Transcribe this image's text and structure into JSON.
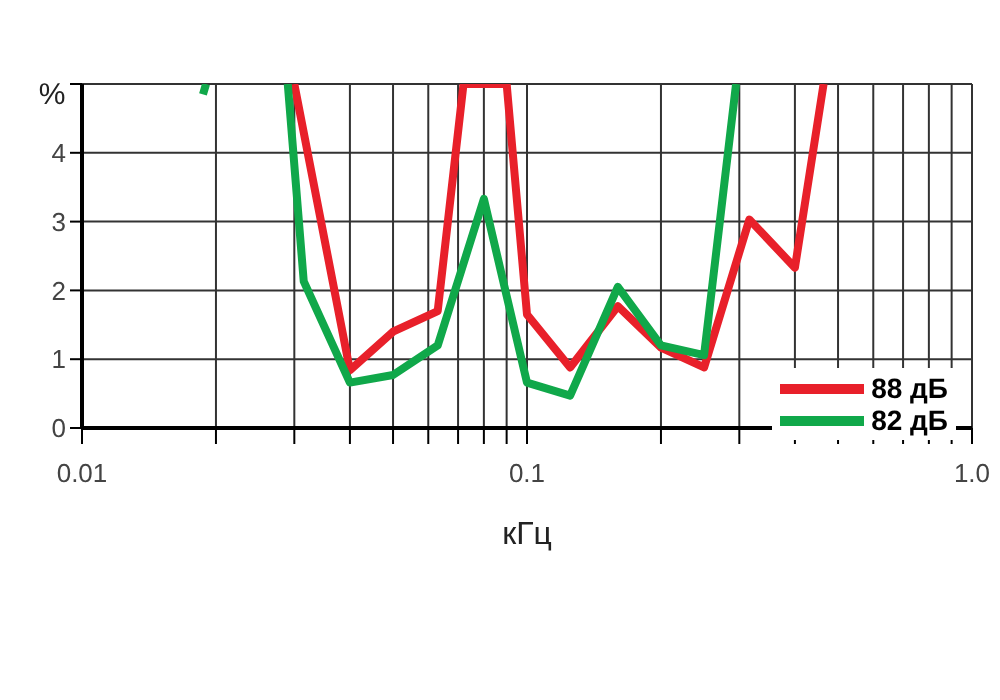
{
  "chart_data": {
    "type": "line",
    "xlabel": "кГц",
    "ylabel": "%",
    "log": "x",
    "grid": true,
    "legend": "bottom right",
    "marker": "none",
    "line_style": "solid",
    "xlim": [
      0.01,
      1.0
    ],
    "xticks": [
      {
        "value": 0.01,
        "label": "0.01"
      },
      {
        "value": 0.02,
        "label": null
      },
      {
        "value": 0.03,
        "label": null
      },
      {
        "value": 0.04,
        "label": null
      },
      {
        "value": 0.05,
        "label": null
      },
      {
        "value": 0.06,
        "label": null
      },
      {
        "value": 0.07,
        "label": null
      },
      {
        "value": 0.08,
        "label": null
      },
      {
        "value": 0.09,
        "label": null
      },
      {
        "value": 0.1,
        "label": "0.1"
      },
      {
        "value": 0.2,
        "label": null
      },
      {
        "value": 0.3,
        "label": null
      },
      {
        "value": 0.4,
        "label": null
      },
      {
        "value": 0.5,
        "label": null
      },
      {
        "value": 0.6,
        "label": null
      },
      {
        "value": 0.7,
        "label": null
      },
      {
        "value": 0.8,
        "label": null
      },
      {
        "value": 0.9,
        "label": null
      },
      {
        "value": 1.0,
        "label": "1.0"
      }
    ],
    "ylim": [
      0,
      5
    ],
    "yticks": [
      0,
      1,
      2,
      3,
      4,
      {
        "value": 5,
        "label": null
      }
    ],
    "series": [
      {
        "name": "88 дБ",
        "color": "#e8202a",
        "x": [
          0.03,
          0.04,
          0.05,
          0.063,
          0.072,
          0.09,
          0.1,
          0.125,
          0.16,
          0.2,
          0.25,
          0.316,
          0.4,
          0.464
        ],
        "values": [
          5,
          0.84,
          1.4,
          1.7,
          5,
          5,
          1.65,
          0.88,
          1.77,
          1.17,
          0.88,
          3.03,
          2.33,
          5
        ]
      },
      {
        "name": "82 дБ",
        "color": "#10a84a",
        "x": [
          0.0187,
          0.019,
          0.024,
          0.029,
          0.0315,
          0.04,
          0.05,
          0.063,
          0.08,
          0.1,
          0.125,
          0.16,
          0.2,
          0.25,
          0.295
        ],
        "values": [
          4.85,
          5,
          null,
          5,
          2.13,
          0.66,
          0.77,
          1.2,
          3.33,
          0.66,
          0.47,
          2.05,
          1.2,
          1.06,
          5
        ]
      }
    ]
  }
}
